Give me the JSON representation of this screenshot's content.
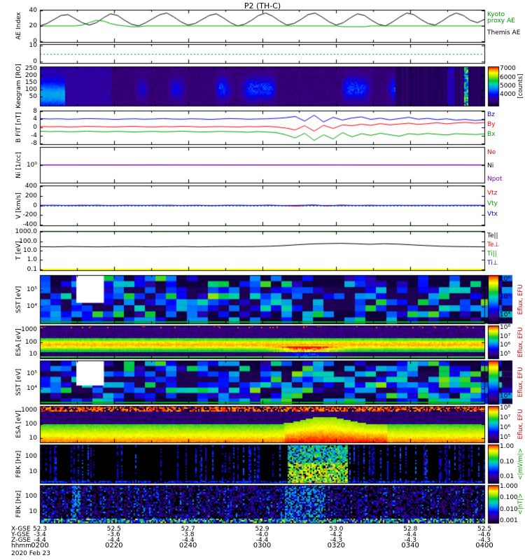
{
  "title": "P2 (TH-C)",
  "chart_data": {
    "type": "multi-panel-timeseries",
    "panels": [
      {
        "id": "ae",
        "type": "line",
        "ylabel": "AE Index",
        "yticks": [
          "40",
          "20",
          "0"
        ],
        "yrange": [
          0,
          40
        ],
        "legend": [
          {
            "label": "Kyoto",
            "color": "#00a000"
          },
          {
            "label": "proxy AE",
            "color": "#00a000"
          },
          {
            "label": "Themis AE",
            "color": "#000000"
          }
        ],
        "series": [
          {
            "name": "Themis AE",
            "color": "#000000",
            "values": [
              20,
              23,
              28,
              33,
              34,
              29,
              24,
              21,
              24,
              30,
              35,
              33,
              27,
              22,
              20,
              24,
              29,
              34,
              36,
              31,
              25,
              21,
              23,
              28,
              33,
              35,
              30,
              24,
              20,
              22,
              27,
              33,
              36,
              32,
              26,
              21,
              23,
              28,
              34,
              36,
              31,
              25,
              21,
              24,
              30,
              35,
              33,
              27,
              22,
              20,
              25,
              31,
              36,
              34,
              28,
              23,
              21,
              26,
              32,
              36,
              33,
              27,
              24,
              28
            ]
          },
          {
            "name": "Kyoto proxy AE",
            "color": "#00a000",
            "values": [
              20,
              20,
              20,
              20,
              20,
              20,
              21,
              24,
              27,
              26,
              23,
              21,
              20,
              19,
              19,
              20,
              20,
              20,
              20,
              20,
              20,
              20,
              20,
              20,
              20,
              20,
              20,
              20,
              20,
              20,
              20,
              20,
              20,
              20,
              20,
              20,
              20,
              20,
              20,
              20,
              20,
              20,
              20,
              19,
              19,
              19,
              19,
              20,
              20,
              20,
              20,
              20,
              20,
              20,
              20,
              20,
              20,
              20,
              20,
              20,
              20,
              20,
              20,
              20
            ]
          }
        ]
      },
      {
        "id": "ae2",
        "type": "line",
        "yticks": [
          "10",
          "0"
        ],
        "yrange": [
          0,
          10
        ],
        "dotted": {
          "value": 5,
          "color": "#008080"
        },
        "series": []
      },
      {
        "id": "keogram",
        "type": "spectrogram",
        "variant": "keogram",
        "seed": 7,
        "ylabel": "Keogram [RO]",
        "yticks": [
          "250",
          "200",
          "150",
          "100",
          "50"
        ],
        "colorbar": {
          "ticks": [
            "7000",
            "6000",
            "5000",
            "4000"
          ],
          "label": "[counts]",
          "label_color": "#000000"
        }
      },
      {
        "id": "bfit",
        "type": "line",
        "ylabel": "B FIT [nT]",
        "yticks": [
          "8",
          "4",
          "0",
          "-4",
          "-8"
        ],
        "yrange": [
          -8,
          8
        ],
        "legend": [
          {
            "label": "Bz",
            "color": "#0000ff"
          },
          {
            "label": "By",
            "color": "#ff0000"
          },
          {
            "label": "Bx",
            "color": "#00a000"
          }
        ],
        "series": [
          {
            "name": "Bz",
            "color": "#0000ff",
            "values": [
              4.2,
              4.0,
              4.1,
              3.9,
              4.0,
              4.2,
              4.1,
              4.0,
              3.8,
              4.0,
              4.1,
              3.9,
              4.0,
              4.2,
              4.0,
              3.9,
              4.1,
              4.0,
              3.8,
              4.0,
              4.2,
              4.1,
              3.9,
              4.0,
              4.1,
              4.3,
              4.6,
              5.2,
              3.0,
              5.8,
              2.6,
              4.8,
              3.5,
              4.5,
              5.0,
              3.8,
              4.4,
              3.6,
              4.2,
              4.8,
              3.9,
              4.3,
              3.7,
              4.1,
              3.5,
              3.8,
              3.3,
              3.6
            ]
          },
          {
            "name": "By",
            "color": "#ff0000",
            "values": [
              0.5,
              0.3,
              0.4,
              0.2,
              0.3,
              0.5,
              0.4,
              0.3,
              0.2,
              0.4,
              0.5,
              0.3,
              0.2,
              0.4,
              0.3,
              0.5,
              0.4,
              0.2,
              0.3,
              0.4,
              0.3,
              0.2,
              0.4,
              0.3,
              0.5,
              0.2,
              -0.3,
              -1.2,
              0.8,
              -1.8,
              1.0,
              -0.5,
              1.2,
              0.8,
              1.5,
              1.0,
              1.8,
              1.2,
              1.6,
              2.0,
              1.4,
              1.8,
              2.2,
              1.7,
              2.1,
              2.4,
              2.0,
              2.3
            ]
          },
          {
            "name": "Bx",
            "color": "#00a000",
            "values": [
              -1.8,
              -2.0,
              -1.9,
              -2.1,
              -2.0,
              -1.8,
              -2.0,
              -2.1,
              -1.9,
              -2.0,
              -2.2,
              -2.0,
              -1.9,
              -2.1,
              -2.0,
              -1.8,
              -2.0,
              -2.2,
              -2.1,
              -1.9,
              -2.0,
              -2.1,
              -2.3,
              -2.0,
              -2.2,
              -2.5,
              -3.5,
              -5.0,
              -2.8,
              -6.2,
              -3.5,
              -5.5,
              -2.5,
              -4.5,
              -3.0,
              -3.8,
              -2.8,
              -3.5,
              -4.2,
              -3.0,
              -3.4,
              -2.9,
              -3.3,
              -3.6,
              -3.0,
              -3.2,
              -3.4,
              -3.1
            ]
          }
        ]
      },
      {
        "id": "ni",
        "type": "line",
        "log": true,
        "ylabel": "Ni [1/cc]",
        "yticks": [
          "10⁰"
        ],
        "yrange": [
          -5,
          5
        ],
        "dotted": {
          "value": -4,
          "color": "#008080"
        },
        "legend": [
          {
            "label": "Ne",
            "color": "#ff0000"
          },
          {
            "label": "Ni",
            "color": "#000000"
          },
          {
            "label": "Npot",
            "color": "#8000c0"
          }
        ],
        "series": [
          {
            "name": "Ne",
            "color": "#ff0000",
            "values": [
              1.0,
              1.0,
              0.98,
              1.0,
              1.02,
              1.0,
              0.99,
              1.0,
              1.0,
              1.01,
              1.0,
              0.98,
              1.0,
              1.0,
              1.02,
              1.0
            ]
          },
          {
            "name": "Ni",
            "color": "#000000",
            "values": [
              0.95,
              0.96,
              0.95,
              0.94,
              0.95,
              0.96,
              0.95,
              0.95,
              0.94,
              0.95,
              0.96,
              0.95,
              0.95,
              0.94,
              0.95,
              0.95
            ]
          },
          {
            "name": "Npot",
            "color": "#8000c0",
            "values": [
              0.9,
              0.9,
              0.89,
              0.9,
              0.91,
              0.9,
              0.9,
              0.89,
              0.9,
              0.9,
              0.91,
              0.9,
              0.89,
              0.9,
              0.9,
              0.9
            ]
          }
        ]
      },
      {
        "id": "v",
        "type": "line",
        "ylabel": "V [km/s]",
        "yticks": [
          "400",
          "200",
          "0",
          "-200",
          "-400"
        ],
        "yrange": [
          -400,
          400
        ],
        "dotted": {
          "value": 0,
          "color": "#008080"
        },
        "legend": [
          {
            "label": "Vtz",
            "color": "#ff0000"
          },
          {
            "label": "Vty",
            "color": "#00a000"
          },
          {
            "label": "Vtx",
            "color": "#0000ff"
          }
        ],
        "series": [
          {
            "name": "Vtz",
            "color": "#ff0000",
            "values": [
              5,
              -3,
              2,
              6,
              -4,
              1,
              3,
              -2,
              4,
              -5,
              2,
              3,
              -1,
              4,
              -3,
              2,
              5,
              -2,
              -15,
              12,
              -10,
              8,
              -3,
              5,
              -1,
              2,
              -4,
              3,
              1,
              -2,
              4,
              2
            ]
          },
          {
            "name": "Vty",
            "color": "#00a000",
            "values": [
              -4,
              2,
              -1,
              -5,
              3,
              -2,
              1,
              4,
              -3,
              2,
              -1,
              3,
              -4,
              1,
              2,
              -3,
              4,
              -1,
              2,
              3,
              -2,
              -4,
              1,
              3,
              -2,
              4,
              -1,
              -3,
              2,
              1,
              -2,
              -1
            ]
          },
          {
            "name": "Vtx",
            "color": "#0000ff",
            "values": [
              2,
              4,
              -2,
              1,
              5,
              -3,
              2,
              -1,
              3,
              4,
              -2,
              1,
              -3,
              2,
              4,
              -1,
              2,
              -3,
              1,
              5,
              -2,
              3,
              1,
              -4,
              2,
              -1,
              3,
              2,
              -3,
              4,
              1,
              3
            ]
          }
        ]
      },
      {
        "id": "t",
        "type": "line",
        "log": true,
        "ylabel": "T [eV]",
        "yticks": [
          "1000.0",
          "100.0",
          "10.0",
          "1.0",
          "0.1"
        ],
        "yrange": [
          -1,
          3
        ],
        "legend": [
          {
            "label": "Te||",
            "color": "#000000"
          },
          {
            "label": "Te⊥",
            "color": "#ff0000"
          },
          {
            "label": "Ti||",
            "color": "#00a000"
          },
          {
            "label": "Ti⊥",
            "color": "#0000ff"
          }
        ],
        "series": [
          {
            "name": "Ti||",
            "color": "#00a000",
            "values": [
              850,
              860,
              855,
              850,
              845,
              850,
              860,
              850,
              855,
              850,
              845,
              850,
              855,
              860,
              850,
              850
            ]
          },
          {
            "name": "Te",
            "color": "#000000",
            "values": [
              25,
              24,
              26,
              25,
              24,
              25,
              26,
              25,
              24,
              25,
              26,
              24,
              25,
              26,
              25,
              26,
              28,
              32,
              40,
              48,
              52,
              55,
              50,
              44,
              50,
              46,
              38,
              32,
              28,
              26,
              25,
              24
            ]
          },
          {
            "name": "Ti⊥",
            "color": "#ffff00",
            "width": 2.5,
            "values": [
              0.12,
              0.12,
              0.12,
              0.12,
              0.12,
              0.12,
              0.12,
              0.12
            ]
          }
        ]
      },
      {
        "id": "sst_ion",
        "type": "spectrogram",
        "variant": "sst",
        "seed": 11,
        "ylabel": "SST [eV]",
        "yticks": [
          "10⁵",
          "10⁴"
        ],
        "green_bottom": true,
        "colorbar": {
          "ticks": [
            "10⁶",
            "10⁵",
            "10⁴"
          ],
          "label": "Eflux, EFU",
          "label_color": "#cc0000"
        }
      },
      {
        "id": "esa_ion",
        "type": "spectrogram",
        "variant": "esa_ion",
        "seed": 13,
        "ylabel": "ESA [eV]",
        "yticks": [
          "1000",
          "100",
          "10"
        ],
        "green_bottom": true,
        "colorbar": {
          "ticks": [
            "10⁸",
            "10⁷",
            "10⁶",
            "10⁵"
          ],
          "label": "Eflux, EFU",
          "label_color": "#cc0000"
        }
      },
      {
        "id": "sst_ele",
        "type": "spectrogram",
        "variant": "sst",
        "seed": 17,
        "ylabel": "SST [eV]",
        "yticks": [
          "10⁵",
          "10⁴"
        ],
        "green_bottom": true,
        "colorbar": {
          "ticks": [
            "10⁶",
            "10⁵",
            "10⁴"
          ],
          "label": "Eflux, EFU",
          "label_color": "#cc0000"
        }
      },
      {
        "id": "esa_ele",
        "type": "spectrogram",
        "variant": "esa_ele",
        "seed": 19,
        "ylabel": "ESA [eV]",
        "yticks": [
          "1000",
          "100",
          "10"
        ],
        "colorbar": {
          "ticks": [
            "10⁸",
            "10⁷",
            "10⁶",
            "10⁵"
          ],
          "label": "Eflux, EFU",
          "label_color": "#cc0000"
        }
      },
      {
        "id": "fbk1",
        "type": "spectrogram",
        "variant": "fbk_e",
        "seed": 23,
        "ylabel": "FBK [Hz]",
        "yticks": [
          "100",
          "10"
        ],
        "colorbar": {
          "ticks": [
            "1.00",
            "0.10",
            "0.01"
          ],
          "label": "<|mV/m|>",
          "label_color": "#00a000"
        }
      },
      {
        "id": "fbk2",
        "type": "spectrogram",
        "variant": "fbk_b",
        "seed": 29,
        "ylabel": "FBK [Hz]",
        "yticks": [
          "100",
          "10"
        ],
        "colorbar": {
          "ticks": [
            "1.000",
            "0.100",
            "0.010",
            "0.001"
          ],
          "label": "<|nT|>",
          "label_color": "#00a000"
        }
      }
    ],
    "xaxis": {
      "ticks": [
        "0200",
        "0220",
        "0240",
        "0300",
        "0320",
        "0340",
        "0400"
      ],
      "rows": [
        {
          "label": "X-GSE",
          "values": [
            "52.3",
            "52.5",
            "52.7",
            "52.9",
            "53.0",
            "52.8",
            "52.5"
          ]
        },
        {
          "label": "Y-GSE",
          "values": [
            "-3.4",
            "-3.6",
            "-3.8",
            "-4.0",
            "-4.2",
            "-4.4",
            "-4.6"
          ]
        },
        {
          "label": "Z-GSE",
          "values": [
            "-4.4",
            "-4.4",
            "-4.4",
            "-4.4",
            "-4.3",
            "-4.3",
            "-4.3"
          ]
        }
      ],
      "time_label": "hhmm",
      "date_label": "2020 Feb 23"
    }
  }
}
